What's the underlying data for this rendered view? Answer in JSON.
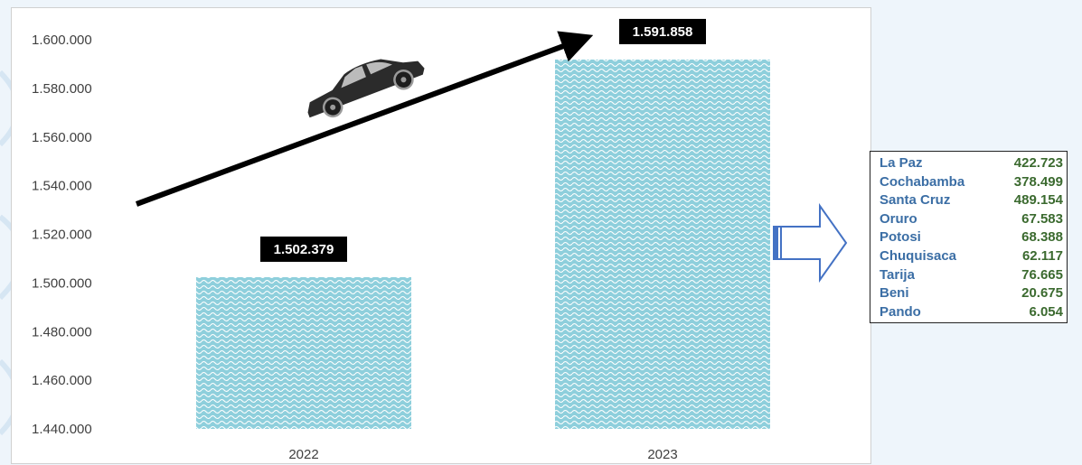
{
  "chart_data": {
    "type": "bar",
    "categories": [
      "2022",
      "2023"
    ],
    "values": [
      1502379,
      1591858
    ],
    "value_labels": [
      "1.502.379",
      "1.591.858"
    ],
    "ylim": [
      1440000,
      1600000
    ],
    "yticks": [
      "1.440.000",
      "1.460.000",
      "1.480.000",
      "1.500.000",
      "1.520.000",
      "1.540.000",
      "1.560.000",
      "1.580.000",
      "1.600.000"
    ],
    "grid": false,
    "bar_color": "#8ecfdc"
  },
  "departments": [
    {
      "name": "La Paz",
      "value": "422.723"
    },
    {
      "name": "Cochabamba",
      "value": "378.499"
    },
    {
      "name": "Santa Cruz",
      "value": "489.154"
    },
    {
      "name": "Oruro",
      "value": "67.583"
    },
    {
      "name": "Potosi",
      "value": "68.388"
    },
    {
      "name": "Chuquisaca",
      "value": "62.117"
    },
    {
      "name": "Tarija",
      "value": "76.665"
    },
    {
      "name": "Beni",
      "value": "20.675"
    },
    {
      "name": "Pando",
      "value": "6.054"
    }
  ],
  "icons": {
    "vehicle": "car-icon",
    "trend": "trend-arrow-icon",
    "pointer": "block-arrow-right-icon"
  }
}
